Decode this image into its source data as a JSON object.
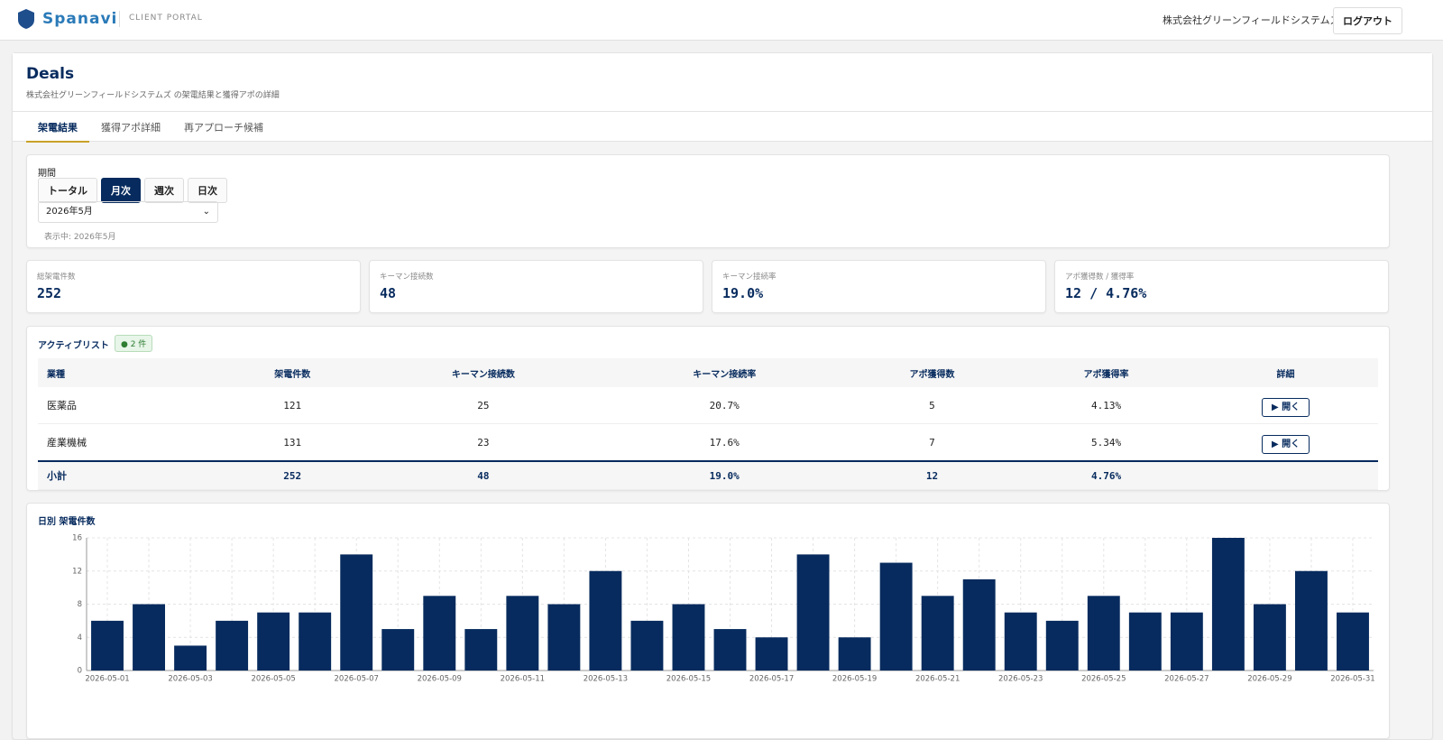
{
  "header": {
    "brand": "Spanavi",
    "portal": "CLIENT PORTAL",
    "company": "株式会社グリーンフィールドシステムズ",
    "logout": "ログアウト"
  },
  "page": {
    "title": "Deals",
    "subtitle": "株式会社グリーンフィールドシステムズ の架電結果と獲得アポの詳細"
  },
  "tabs": [
    "架電結果",
    "獲得アポ詳細",
    "再アプローチ候補"
  ],
  "filter": {
    "label": "期間",
    "modes": [
      "トータル",
      "月次",
      "週次",
      "日次"
    ],
    "select": "2026年5月",
    "status": "表示中: 2026年5月"
  },
  "kpis": [
    {
      "label": "総架電件数",
      "value": 252
    },
    {
      "label": "キーマン接続数",
      "value": 48
    },
    {
      "label": "キーマン接続率",
      "value": "19.0%"
    },
    {
      "label": "アポ獲得数 / 獲得率",
      "value": "12 / 4.76%"
    }
  ],
  "table": {
    "title": "アクティブリスト",
    "badge": "2 件",
    "columns": [
      "業種",
      "架電件数",
      "キーマン接続数",
      "キーマン接続率",
      "アポ獲得数",
      "アポ獲得率",
      "詳細"
    ],
    "rows": [
      [
        "医薬品",
        121,
        25,
        "20.7%",
        5,
        "4.13%",
        "▶ 開く"
      ],
      [
        "産業機械",
        131,
        23,
        "17.6%",
        7,
        "5.34%",
        "▶ 開く"
      ]
    ],
    "total": [
      "小計",
      252,
      48,
      "19.0%",
      12,
      "4.76%"
    ]
  },
  "chart_data": {
    "type": "bar",
    "title": "日別 架電件数",
    "categories": [
      "2026-05-01",
      null,
      "2026-05-03",
      null,
      "2026-05-05",
      null,
      "2026-05-07",
      null,
      "2026-05-09",
      null,
      "2026-05-11",
      null,
      "2026-05-13",
      null,
      "2026-05-15",
      null,
      "2026-05-17",
      null,
      "2026-05-19",
      null,
      "2026-05-21",
      null,
      "2026-05-23",
      null,
      "2026-05-25",
      null,
      "2026-05-27",
      null,
      "2026-05-29",
      null,
      "2026-05-31"
    ],
    "values": [
      6,
      8,
      3,
      6,
      7,
      7,
      14,
      5,
      9,
      5,
      9,
      8,
      12,
      6,
      8,
      5,
      4,
      14,
      4,
      13,
      9,
      11,
      7,
      6,
      9,
      7,
      7,
      16,
      8,
      12,
      7
    ],
    "color": "#072b5e",
    "ylim": [
      0,
      16
    ],
    "yticks": [
      0,
      4,
      8,
      12,
      16
    ],
    "grid": true
  }
}
